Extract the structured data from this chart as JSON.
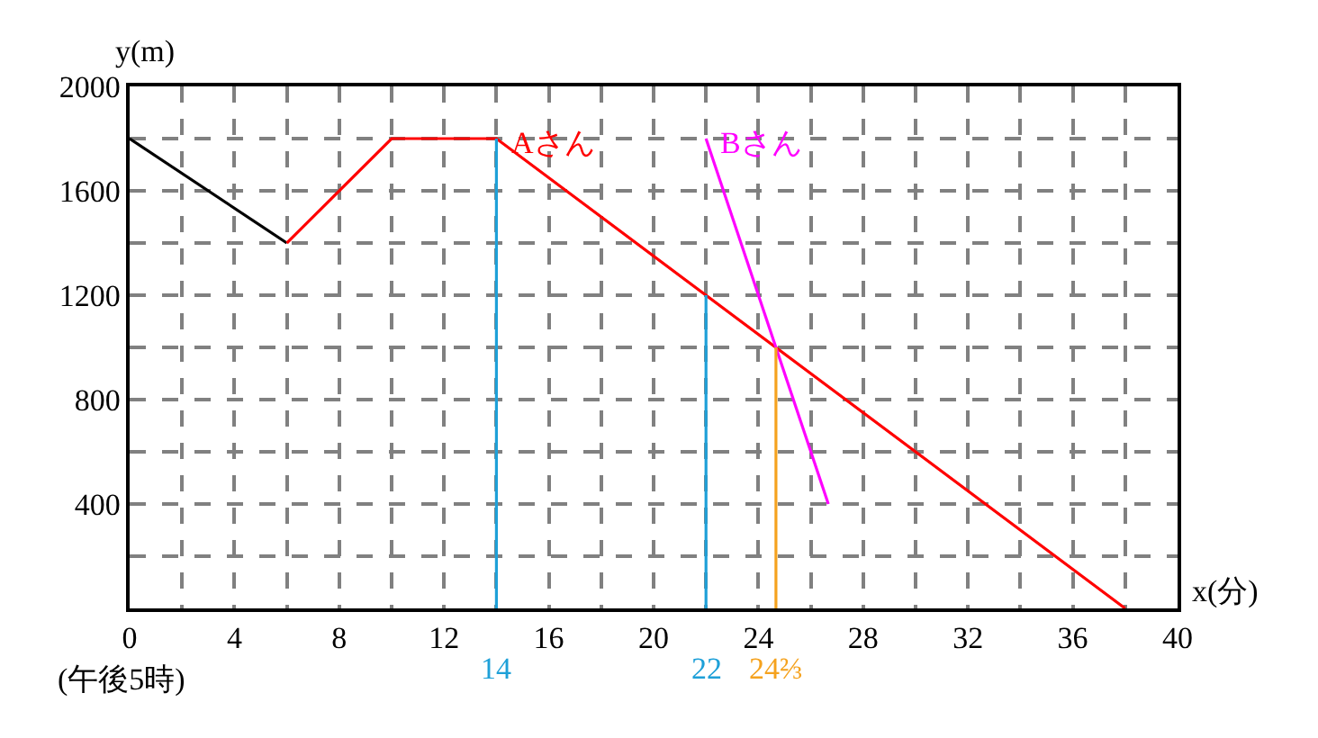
{
  "chart_data": {
    "type": "line",
    "xlabel": "x(分)",
    "ylabel": "y(m)",
    "xlim": [
      0,
      40
    ],
    "ylim": [
      0,
      2000
    ],
    "xticks": [
      0,
      {
        "value": 2,
        "label": null
      },
      4,
      {
        "value": 6,
        "label": null
      },
      8,
      {
        "value": 10,
        "label": null
      },
      12,
      {
        "value": 14,
        "label": null
      },
      16,
      {
        "value": 18,
        "label": null
      },
      20,
      {
        "value": 22,
        "label": null
      },
      24,
      {
        "value": 26,
        "label": null
      },
      28,
      {
        "value": 30,
        "label": null
      },
      32,
      {
        "value": 34,
        "label": null
      },
      36,
      {
        "value": 38,
        "label": null
      },
      40
    ],
    "yticks": [
      {
        "value": 0,
        "label": null
      },
      {
        "value": 200,
        "label": null
      },
      400,
      {
        "value": 600,
        "label": null
      },
      800,
      {
        "value": 1000,
        "label": null
      },
      1200,
      {
        "value": 1400,
        "label": null
      },
      1600,
      {
        "value": 1800,
        "label": null
      },
      2000
    ],
    "grid": true,
    "legend": false,
    "marker": "none",
    "line_style": "solid",
    "series": [
      {
        "color": "#000000",
        "x": [
          0,
          6
        ],
        "values": [
          1800,
          1400
        ]
      },
      {
        "name": "Aさん",
        "color": "#ff0000",
        "x": [
          6,
          10,
          14,
          38
        ],
        "values": [
          1400,
          1800,
          1800,
          0
        ]
      },
      {
        "name": "Bさん",
        "color": "#ff00ff",
        "x": [
          22,
          26.67
        ],
        "values": [
          1800,
          400
        ]
      },
      {
        "color": "#1ea0d8",
        "x": [
          14,
          14
        ],
        "values": [
          1800,
          0
        ]
      },
      {
        "color": "#1ea0d8",
        "x": [
          22,
          22
        ],
        "values": [
          1200,
          0
        ]
      },
      {
        "color": "#f5a21e",
        "x": [
          24.67,
          24.67
        ],
        "values": [
          1000,
          0
        ]
      }
    ],
    "annotations": [
      {
        "text": "14",
        "x": 14,
        "y": 0
      },
      {
        "text": "22",
        "x": 22,
        "y": 0
      },
      {
        "text": "24⅔",
        "x": 24.67,
        "y": 0
      },
      "(午後5時)"
    ]
  }
}
